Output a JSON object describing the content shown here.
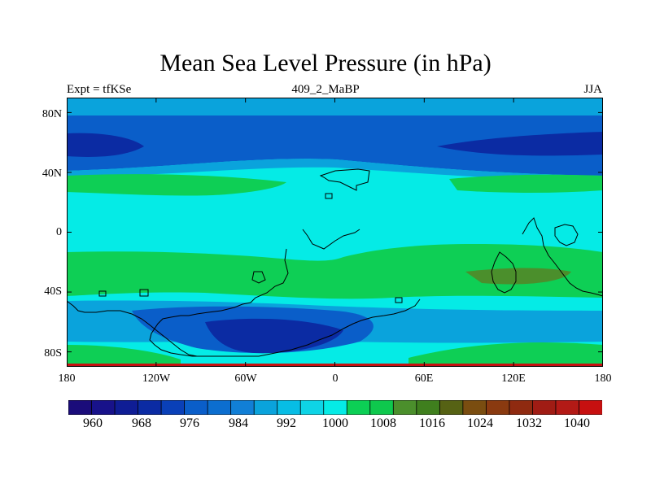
{
  "map": {
    "title": "Mean Sea Level Pressure (in hPa)",
    "left_label": "Expt = tfKSe",
    "center_label": "409_2_MaBP",
    "right_label": "JJA",
    "lat_ticks": [
      "80N",
      "40N",
      "0",
      "40S",
      "80S"
    ],
    "lat_tick_values": [
      80,
      40,
      0,
      -40,
      -80
    ],
    "lon_ticks": [
      "180",
      "120W",
      "60W",
      "0",
      "60E",
      "120E",
      "180"
    ],
    "lon_tick_values": [
      -180,
      -120,
      -60,
      0,
      60,
      120,
      180
    ]
  },
  "colorbar": {
    "labels": [
      "960",
      "968",
      "976",
      "984",
      "992",
      "1000",
      "1008",
      "1016",
      "1024",
      "1032",
      "1040"
    ],
    "label_values": [
      960,
      968,
      976,
      984,
      992,
      1000,
      1008,
      1016,
      1024,
      1032,
      1040
    ],
    "levels": [
      956,
      960,
      964,
      968,
      972,
      976,
      980,
      984,
      988,
      992,
      996,
      1000,
      1004,
      1008,
      1012,
      1016,
      1020,
      1024,
      1028,
      1032,
      1036,
      1040,
      1044
    ],
    "colors": [
      "#1a0c7a",
      "#18128a",
      "#0f1d95",
      "#0b2ba3",
      "#0a40b8",
      "#0a5ec9",
      "#0c6ecf",
      "#117fd6",
      "#0aa3dc",
      "#07bde5",
      "#0ed4e6",
      "#05ebe6",
      "#0ccf55",
      "#0ec84d",
      "#4b8f2c",
      "#3f7f1e",
      "#566214",
      "#7a4d10",
      "#8a3a10",
      "#8f2a10",
      "#a01c14",
      "#b31a16",
      "#c71010"
    ]
  },
  "field_colors": {
    "deep_low": "#0b2ba3",
    "low": "#0a5ec9",
    "mid_low": "#0aa3dc",
    "near_1000": "#05ebe6",
    "high": "#0ecf55",
    "higher": "#4b8f2c"
  }
}
